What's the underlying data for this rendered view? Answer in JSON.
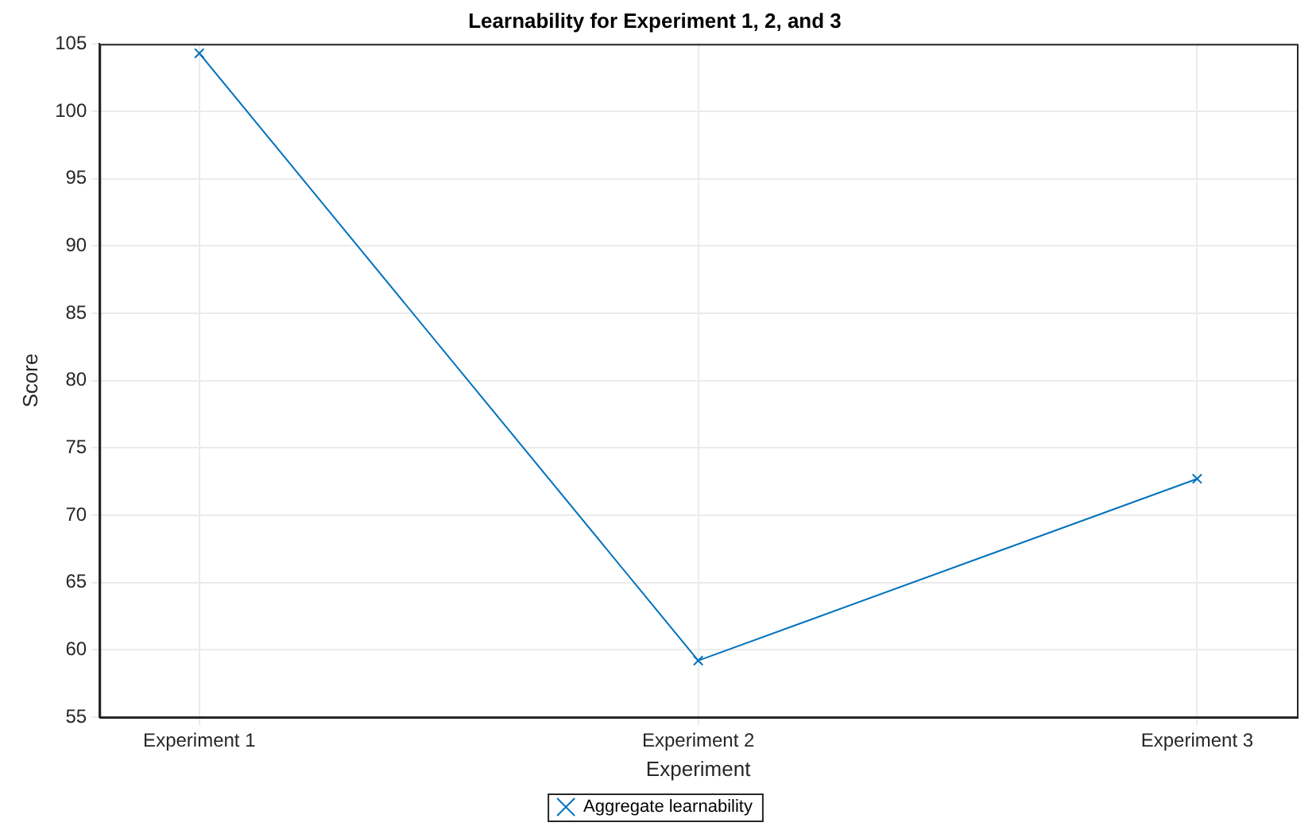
{
  "chart_data": {
    "type": "line",
    "title": "Learnability for Experiment 1, 2, and 3",
    "xlabel": "Experiment",
    "ylabel": "Score",
    "categories": [
      "Experiment 1",
      "Experiment 2",
      "Experiment 3"
    ],
    "series": [
      {
        "name": "Aggregate learnability",
        "color": "#0072bd",
        "values": [
          104.3,
          59.2,
          72.7
        ]
      }
    ],
    "ylim": [
      55,
      105
    ],
    "yticks": [
      55,
      60,
      65,
      70,
      75,
      80,
      85,
      90,
      95,
      100,
      105
    ],
    "grid": true,
    "legend": "bottom",
    "marker": "cross",
    "line_style": "solid"
  }
}
